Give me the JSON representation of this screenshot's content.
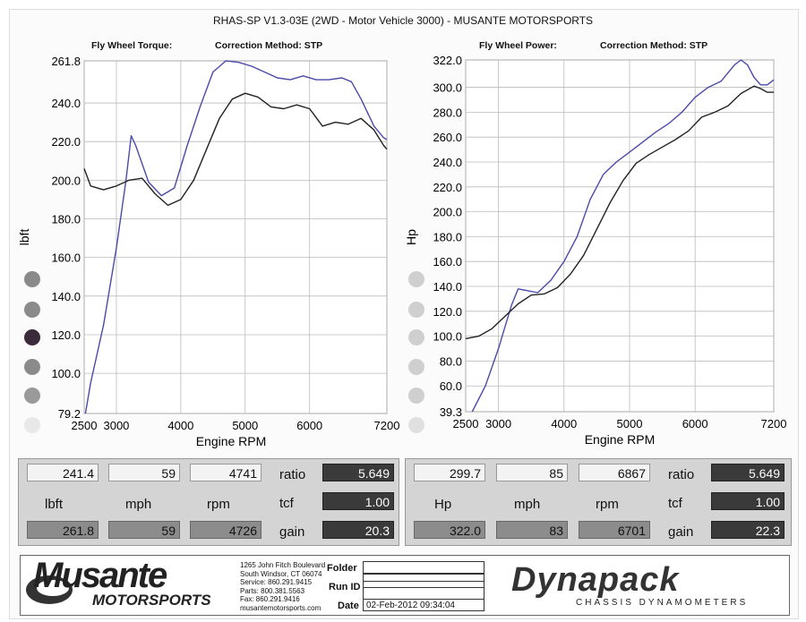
{
  "header": {
    "title": "RHAS-SP V1.3-03E  (2WD - Motor Vehicle 3000) - MUSANTE MOTORSPORTS",
    "left_label": "Fly Wheel Torque:",
    "left_method": "Correction Method: STP",
    "right_label": "Fly Wheel Power:",
    "right_method": "Correction Method: STP"
  },
  "chart_data": [
    {
      "type": "line",
      "title": "Fly Wheel Torque:",
      "xlabel": "Engine RPM",
      "ylabel": "lbft",
      "xlim": [
        2500,
        7200
      ],
      "ylim": [
        79.2,
        261.8
      ],
      "x_ticks": [
        "2500",
        "3000",
        "4000",
        "5000",
        "6000",
        "7200"
      ],
      "x_tick_values": [
        2500,
        3000,
        4000,
        5000,
        6000,
        7200
      ],
      "y_ticks": [
        "79.2",
        "100.0",
        "120.0",
        "140.0",
        "160.0",
        "180.0",
        "200.0",
        "220.0",
        "240.0",
        "261.8"
      ],
      "y_tick_values": [
        79.2,
        100,
        120,
        140,
        160,
        180,
        200,
        220,
        240,
        261.8
      ],
      "grid": true,
      "series": [
        {
          "color": "#4a4aa8",
          "x": [
            2520,
            2600,
            2800,
            3000,
            3150,
            3230,
            3300,
            3500,
            3700,
            3900,
            4100,
            4300,
            4500,
            4700,
            4900,
            5100,
            5300,
            5500,
            5700,
            5900,
            6100,
            6300,
            6500,
            6650,
            6800,
            7000,
            7150,
            7200
          ],
          "y": [
            79.2,
            95,
            125,
            165,
            200,
            223,
            218,
            199,
            192,
            196,
            218,
            238,
            256,
            261.8,
            261,
            259,
            256,
            253,
            252,
            254,
            252,
            252,
            253,
            251,
            242,
            228,
            222,
            221
          ]
        },
        {
          "color": "#222222",
          "x": [
            2500,
            2600,
            2800,
            3000,
            3200,
            3400,
            3600,
            3800,
            4000,
            4200,
            4400,
            4600,
            4800,
            5000,
            5200,
            5400,
            5600,
            5800,
            6000,
            6200,
            6400,
            6600,
            6800,
            7000,
            7150,
            7200
          ],
          "y": [
            206,
            197,
            195,
            197,
            200,
            201,
            193,
            187,
            190,
            200,
            216,
            232,
            242,
            245,
            243,
            238,
            237,
            239,
            237,
            228,
            230,
            229,
            232,
            226,
            218,
            216
          ]
        }
      ]
    },
    {
      "type": "line",
      "title": "Fly Wheel Power:",
      "xlabel": "Engine RPM",
      "ylabel": "Hp",
      "xlim": [
        2500,
        7200
      ],
      "ylim": [
        39.3,
        322.0
      ],
      "x_ticks": [
        "2500",
        "3000",
        "4000",
        "5000",
        "6000",
        "7200"
      ],
      "x_tick_values": [
        2500,
        3000,
        4000,
        5000,
        6000,
        7200
      ],
      "y_ticks": [
        "39.3",
        "60.0",
        "80.0",
        "100.0",
        "120.0",
        "140.0",
        "160.0",
        "180.0",
        "200.0",
        "220.0",
        "240.0",
        "260.0",
        "280.0",
        "300.0",
        "322.0"
      ],
      "y_tick_values": [
        39.3,
        60,
        80,
        100,
        120,
        140,
        160,
        180,
        200,
        220,
        240,
        260,
        280,
        300,
        322
      ],
      "grid": true,
      "series": [
        {
          "color": "#4a4aa8",
          "x": [
            2600,
            2800,
            3000,
            3200,
            3300,
            3400,
            3600,
            3800,
            4000,
            4200,
            4400,
            4600,
            4800,
            5000,
            5200,
            5400,
            5600,
            5800,
            6000,
            6200,
            6400,
            6600,
            6700,
            6800,
            6900,
            7000,
            7100,
            7200
          ],
          "y": [
            39.3,
            60,
            90,
            125,
            138,
            137,
            135,
            145,
            160,
            180,
            210,
            230,
            240,
            248,
            256,
            264,
            271,
            280,
            292,
            300,
            305,
            318,
            322,
            318,
            308,
            302,
            302,
            306
          ]
        },
        {
          "color": "#222222",
          "x": [
            2500,
            2700,
            2900,
            3100,
            3300,
            3500,
            3700,
            3900,
            4100,
            4300,
            4500,
            4700,
            4900,
            5100,
            5300,
            5500,
            5700,
            5900,
            6100,
            6300,
            6500,
            6700,
            6900,
            7000,
            7100,
            7200
          ],
          "y": [
            98,
            100,
            106,
            116,
            126,
            133,
            134,
            139,
            150,
            165,
            186,
            207,
            225,
            239,
            246,
            252,
            258,
            265,
            276,
            280,
            285,
            295,
            301,
            299,
            296,
            296
          ]
        }
      ]
    }
  ],
  "left_panel": {
    "row1": [
      "241.4",
      "59",
      "4741"
    ],
    "units": [
      "lbft",
      "mph",
      "rpm"
    ],
    "row3": [
      "261.8",
      "59",
      "4726"
    ],
    "ratio_label": "ratio",
    "ratio": "5.649",
    "tcf_label": "tcf",
    "tcf": "1.00",
    "gain_label": "gain",
    "gain": "20.3"
  },
  "right_panel": {
    "row1": [
      "299.7",
      "85",
      "6867"
    ],
    "units": [
      "Hp",
      "mph",
      "rpm"
    ],
    "row3": [
      "322.0",
      "83",
      "6701"
    ],
    "ratio_label": "ratio",
    "ratio": "5.649",
    "tcf_label": "tcf",
    "tcf": "1.00",
    "gain_label": "gain",
    "gain": "22.3"
  },
  "footer": {
    "logo_main": "Musante",
    "logo_sub": "MOTORSPORTS",
    "address": [
      "1265 John Fitch Boulevard",
      "South Windsor, CT 06074",
      "Service: 860.291.9415",
      "Parts: 800.381.5563",
      "Fax: 860.291.9416",
      "musantemotorsports.com"
    ],
    "folder_label": "Folder",
    "runid_label": "Run ID",
    "date_label": "Date",
    "date_value": "02-Feb-2012  09:34:04",
    "dyna_logo": "Dynapack",
    "dyna_sub": "CHASSIS  DYNAMOMETERS"
  },
  "colors": {
    "run1": "#4a4aa8",
    "run2": "#222222"
  }
}
